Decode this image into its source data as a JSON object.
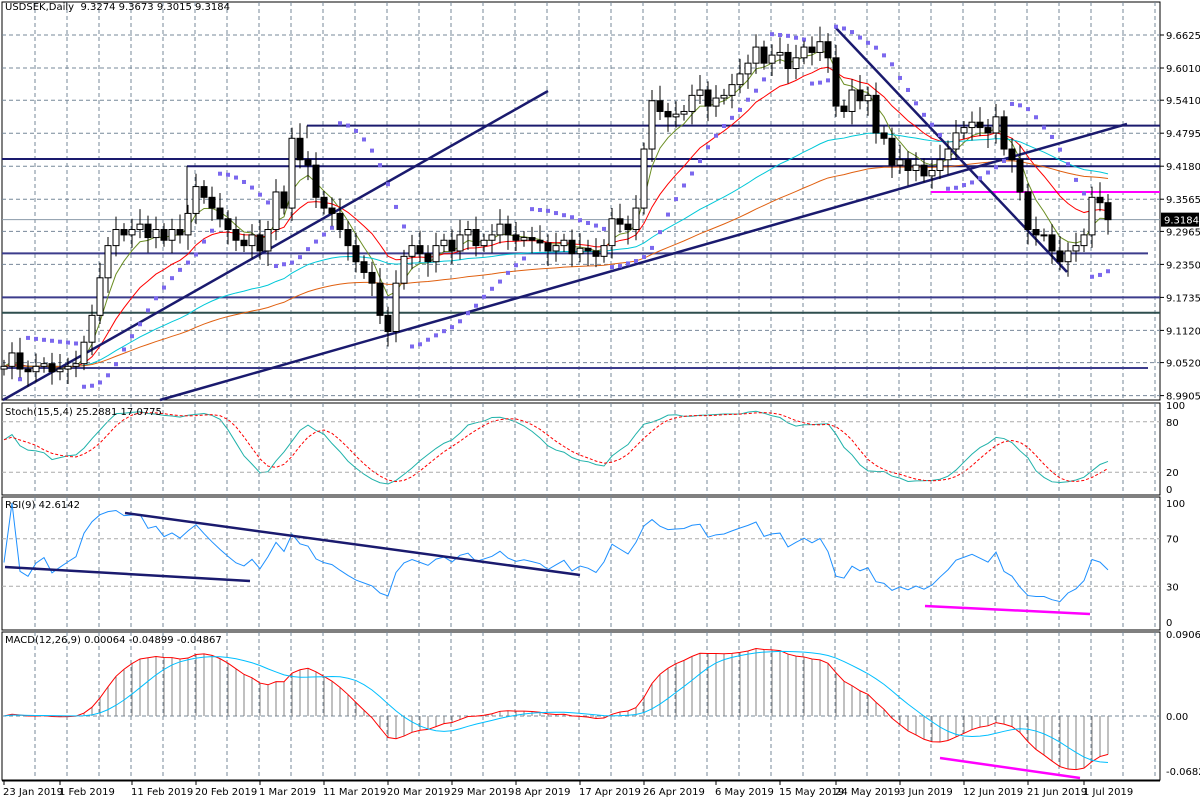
{
  "header": {
    "symbol": "USDSEK,Daily",
    "open": "9.3274",
    "high": "9.3673",
    "low": "9.3015",
    "close": "9.3184"
  },
  "indicators": {
    "stoch": {
      "label": "Stoch(15,5,4) 25.2881 17.0775",
      "levels": [
        "100",
        "80",
        "20",
        "0"
      ]
    },
    "rsi": {
      "label": "RSI(9) 42.6142",
      "levels": [
        "100",
        "70",
        "30",
        "0"
      ]
    },
    "macd": {
      "label": "MACD(12,26,9) 0.00064 -0.04899 -0.04867",
      "levels": [
        "0.09063",
        "0.00",
        "-0.0682"
      ]
    }
  },
  "chart_data": {
    "type": "candlestick",
    "title": "USDSEK,Daily",
    "current_price": "9.3184",
    "price_ticks": [
      "9.6625",
      "9.6010",
      "9.5410",
      "9.4795",
      "9.4180",
      "9.3565",
      "9.2965",
      "9.2350",
      "9.1735",
      "9.1120",
      "9.0520",
      "8.9905"
    ],
    "ylim": [
      8.9905,
      9.6625
    ],
    "date_labels": [
      {
        "text": "23 Jan 2019",
        "bar": 0
      },
      {
        "text": "1 Feb 2019",
        "bar": 7
      },
      {
        "text": "11 Feb 2019",
        "bar": 16
      },
      {
        "text": "20 Feb 2019",
        "bar": 24
      },
      {
        "text": "1 Mar 2019",
        "bar": 32
      },
      {
        "text": "11 Mar 2019",
        "bar": 40
      },
      {
        "text": "20 Mar 2019",
        "bar": 48
      },
      {
        "text": "29 Mar 2019",
        "bar": 56
      },
      {
        "text": "8 Apr 2019",
        "bar": 64
      },
      {
        "text": "17 Apr 2019",
        "bar": 72
      },
      {
        "text": "26 Apr 2019",
        "bar": 80
      },
      {
        "text": "6 May 2019",
        "bar": 89
      },
      {
        "text": "15 May 2019",
        "bar": 97
      },
      {
        "text": "24 May 2019",
        "bar": 104
      },
      {
        "text": "3 Jun 2019",
        "bar": 112
      },
      {
        "text": "12 Jun 2019",
        "bar": 120
      },
      {
        "text": "21 Jun 2019",
        "bar": 128
      },
      {
        "text": "1 Jul 2019",
        "bar": 135
      }
    ],
    "closes": [
      9.045,
      9.07,
      9.04,
      9.035,
      9.045,
      9.05,
      9.035,
      9.04,
      9.045,
      9.05,
      9.09,
      9.14,
      9.21,
      9.27,
      9.3,
      9.29,
      9.3,
      9.31,
      9.285,
      9.3,
      9.28,
      9.3,
      9.29,
      9.33,
      9.38,
      9.36,
      9.34,
      9.32,
      9.3,
      9.28,
      9.27,
      9.29,
      9.26,
      9.3,
      9.37,
      9.34,
      9.47,
      9.43,
      9.42,
      9.36,
      9.34,
      9.33,
      9.3,
      9.27,
      9.24,
      9.22,
      9.2,
      9.14,
      9.11,
      9.2,
      9.25,
      9.27,
      9.255,
      9.24,
      9.27,
      9.28,
      9.26,
      9.29,
      9.3,
      9.27,
      9.28,
      9.29,
      9.31,
      9.29,
      9.28,
      9.285,
      9.28,
      9.275,
      9.26,
      9.27,
      9.28,
      9.255,
      9.265,
      9.26,
      9.25,
      9.27,
      9.32,
      9.31,
      9.3,
      9.34,
      9.45,
      9.54,
      9.52,
      9.51,
      9.515,
      9.52,
      9.55,
      9.56,
      9.53,
      9.545,
      9.55,
      9.57,
      9.59,
      9.61,
      9.64,
      9.61,
      9.625,
      9.63,
      9.6,
      9.62,
      9.64,
      9.63,
      9.65,
      9.62,
      9.53,
      9.52,
      9.56,
      9.54,
      9.55,
      9.48,
      9.47,
      9.42,
      9.43,
      9.41,
      9.42,
      9.4,
      9.41,
      9.43,
      9.45,
      9.48,
      9.49,
      9.5,
      9.49,
      9.48,
      9.51,
      9.45,
      9.43,
      9.37,
      9.3,
      9.29,
      9.29,
      9.26,
      9.24,
      9.26,
      9.27,
      9.29,
      9.36,
      9.35,
      9.3184
    ],
    "moving_averages": [
      {
        "period": 5,
        "color": "#6b8e23"
      },
      {
        "period": 14,
        "color": "#ff0000"
      },
      {
        "period": 50,
        "color": "#00c8d8"
      },
      {
        "period": 80,
        "color": "#e06010"
      }
    ],
    "levels": [
      {
        "price": 9.4935,
        "color": "#1a1a6e"
      },
      {
        "price": 9.4315,
        "color": "#1a1a6e"
      },
      {
        "price": 9.418,
        "color": "#1a1a6e"
      },
      {
        "price": 9.37,
        "color": "#ff00ff"
      },
      {
        "price": 9.2555,
        "color": "#3c3c8c"
      },
      {
        "price": 9.1735,
        "color": "#3c3c8c"
      },
      {
        "price": 9.145,
        "color": "#2f4f4f"
      },
      {
        "price": 9.042,
        "color": "#3c3c8c"
      }
    ],
    "colors": {
      "bull": "#ffffff",
      "bear": "#000000",
      "sar": "#7b68ee",
      "trend": "#1a1a6e",
      "divergence": "#ff00ff",
      "stoch_main": "#20b2aa",
      "stoch_signal": "#ff0000",
      "rsi": "#1e90ff",
      "macd": "#ff0000",
      "signal": "#00bfff",
      "hist": "#808080"
    }
  }
}
